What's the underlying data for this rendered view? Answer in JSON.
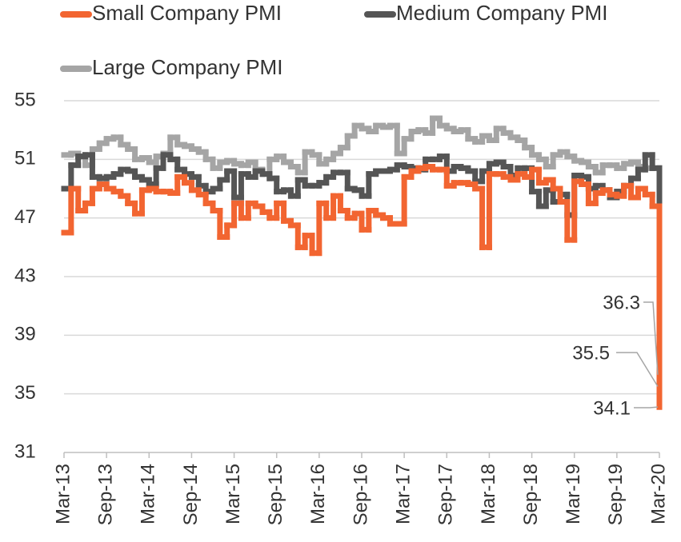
{
  "chart_data": {
    "type": "step",
    "categories": [
      "Mar-13",
      null,
      null,
      null,
      null,
      null,
      "Sep-13",
      null,
      null,
      null,
      null,
      null,
      "Mar-14",
      null,
      null,
      null,
      null,
      null,
      "Sep-14",
      null,
      null,
      null,
      null,
      null,
      "Mar-15",
      null,
      null,
      null,
      null,
      null,
      "Sep-15",
      null,
      null,
      null,
      null,
      null,
      "Mar-16",
      null,
      null,
      null,
      null,
      null,
      "Sep-16",
      null,
      null,
      null,
      null,
      null,
      "Mar-17",
      null,
      null,
      null,
      null,
      null,
      "Sep-17",
      null,
      null,
      null,
      null,
      null,
      "Mar-18",
      null,
      null,
      null,
      null,
      null,
      "Sep-18",
      null,
      null,
      null,
      null,
      null,
      "Mar-19",
      null,
      null,
      null,
      null,
      null,
      "Sep-19",
      null,
      null,
      null,
      null,
      null,
      "Mar-20"
    ],
    "series": [
      {
        "name": "Small Company PMI",
        "color": "#f26531",
        "values": [
          46.0,
          49.0,
          47.5,
          48.0,
          49.0,
          49.3,
          49.0,
          48.8,
          48.5,
          48.0,
          47.3,
          48.9,
          49.0,
          48.8,
          48.8,
          48.7,
          49.8,
          49.4,
          48.9,
          48.6,
          48.0,
          47.5,
          45.7,
          46.5,
          48.0,
          47.0,
          48.0,
          47.8,
          47.4,
          47.0,
          48.0,
          46.8,
          46.5,
          45.0,
          45.8,
          44.6,
          48.0,
          47.0,
          48.5,
          47.5,
          47.0,
          47.3,
          46.2,
          47.5,
          47.2,
          47.0,
          46.6,
          46.6,
          49.8,
          50.2,
          50.4,
          50.5,
          50.3,
          50.3,
          49.2,
          49.4,
          49.4,
          49.3,
          49.0,
          45.0,
          50.0,
          50.0,
          49.8,
          49.6,
          50.0,
          49.8,
          50.3,
          49.4,
          49.6,
          49.0,
          48.1,
          45.5,
          49.5,
          49.3,
          48.0,
          48.7,
          48.9,
          48.6,
          48.5,
          49.2,
          48.4,
          49.0,
          48.6,
          47.8,
          34.1
        ]
      },
      {
        "name": "Medium Company PMI",
        "color": "#555555",
        "values": [
          49.0,
          50.6,
          51.2,
          51.3,
          49.8,
          49.7,
          49.8,
          50.0,
          50.3,
          50.2,
          49.8,
          49.6,
          49.3,
          50.4,
          51.3,
          51.0,
          50.3,
          50.0,
          49.8,
          49.2,
          48.8,
          49.0,
          49.6,
          50.2,
          48.4,
          50.0,
          49.8,
          50.2,
          50.0,
          49.7,
          48.8,
          48.9,
          48.5,
          49.6,
          49.2,
          49.2,
          49.4,
          49.8,
          50.1,
          50.1,
          49.0,
          48.9,
          48.5,
          50.0,
          50.2,
          50.2,
          50.3,
          50.6,
          50.5,
          50.4,
          50.3,
          51.0,
          51.0,
          51.2,
          50.2,
          50.5,
          50.4,
          50.2,
          49.5,
          50.2,
          50.7,
          50.8,
          50.5,
          49.9,
          50.4,
          50.4,
          48.8,
          47.8,
          48.9,
          48.1,
          48.6,
          47.2,
          49.9,
          49.8,
          49.0,
          49.2,
          48.9,
          48.4,
          48.8,
          49.2,
          49.7,
          50.3,
          51.3,
          50.4,
          35.5
        ]
      },
      {
        "name": "Large Company PMI",
        "color": "#a5a5a5",
        "values": [
          51.3,
          51.4,
          51.2,
          50.6,
          51.7,
          52.1,
          52.4,
          52.5,
          52.0,
          51.7,
          51.0,
          51.1,
          50.8,
          51.2,
          51.4,
          52.5,
          52.0,
          51.9,
          51.7,
          51.5,
          51.0,
          50.4,
          50.8,
          50.9,
          50.7,
          50.6,
          50.8,
          50.3,
          50.0,
          51.0,
          51.2,
          50.8,
          50.5,
          50.1,
          51.5,
          51.3,
          50.7,
          51.0,
          51.4,
          51.8,
          52.6,
          53.3,
          53.1,
          52.9,
          53.3,
          53.2,
          53.3,
          51.4,
          52.4,
          52.9,
          53.0,
          52.8,
          53.8,
          53.3,
          53.1,
          52.9,
          53.0,
          52.4,
          52.2,
          52.6,
          52.3,
          53.1,
          52.8,
          52.5,
          52.3,
          51.8,
          51.3,
          51.0,
          50.5,
          51.3,
          51.5,
          51.2,
          50.9,
          50.8,
          50.5,
          50.1,
          50.6,
          50.6,
          50.4,
          50.7,
          50.8,
          50.5,
          50.4,
          50.4,
          36.3
        ]
      }
    ],
    "ylim": [
      31,
      55
    ],
    "yticks": [
      31,
      35,
      39,
      43,
      47,
      51,
      55
    ],
    "grid": true,
    "legend": "top"
  }
}
